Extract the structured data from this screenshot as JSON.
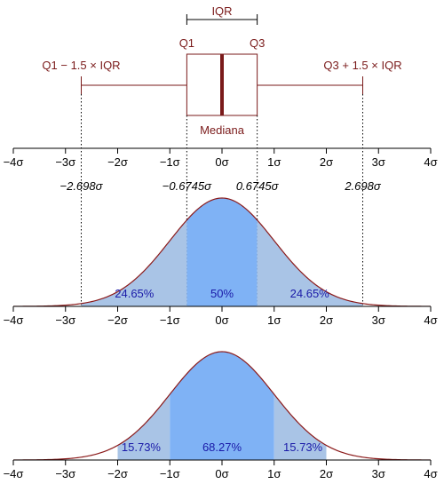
{
  "colors": {
    "box": "#7a1a1a",
    "median": "#7a1a1a",
    "curve": "#8b1a1a",
    "outer_fill": "#a9c4e6",
    "inner_fill": "#7fb2f5",
    "pct_text": "#1a1aa8",
    "sigma_text": "#000000",
    "dotted": "#000000"
  },
  "boxplot": {
    "iqr_label": "IQR",
    "q1_label": "Q1",
    "q3_label": "Q3",
    "median_label": "Mediana",
    "lower_whisker_label": "Q1 − 1.5 × IQR",
    "upper_whisker_label": "Q3 + 1.5 × IQR"
  },
  "quantiles": {
    "lower_whisker": {
      "value": -2.698,
      "label": "−2.698σ"
    },
    "q1": {
      "value": -0.6745,
      "label": "−0.6745σ"
    },
    "q3": {
      "value": 0.6745,
      "label": "0.6745σ"
    },
    "upper_whisker": {
      "value": 2.698,
      "label": "2.698σ"
    }
  },
  "axis": {
    "min": -4,
    "max": 4,
    "ticks": [
      {
        "value": -4,
        "label": "−4σ"
      },
      {
        "value": -3,
        "label": "−3σ"
      },
      {
        "value": -2,
        "label": "−2σ"
      },
      {
        "value": -1,
        "label": "−1σ"
      },
      {
        "value": 0,
        "label": "0σ"
      },
      {
        "value": 1,
        "label": "1σ"
      },
      {
        "value": 2,
        "label": "2σ"
      },
      {
        "value": 3,
        "label": "3σ"
      },
      {
        "value": 4,
        "label": "4σ"
      }
    ]
  },
  "panel_iqr": {
    "bounds": [
      -2.698,
      -0.6745,
      0.6745,
      2.698
    ],
    "shaded": [
      {
        "from": -2.698,
        "to": -0.6745,
        "label": "24.65%",
        "at": -1.68,
        "kind": "outer"
      },
      {
        "from": -0.6745,
        "to": 0.6745,
        "label": "50%",
        "at": 0,
        "kind": "inner"
      },
      {
        "from": 0.6745,
        "to": 2.698,
        "label": "24.65%",
        "at": 1.68,
        "kind": "outer"
      }
    ]
  },
  "panel_sigma": {
    "bounds": [
      -2,
      -1,
      1,
      2
    ],
    "shaded": [
      {
        "from": -2,
        "to": -1,
        "label": "15.73%",
        "at": -1.55,
        "kind": "outer"
      },
      {
        "from": -1,
        "to": 1,
        "label": "68.27%",
        "at": 0,
        "kind": "inner"
      },
      {
        "from": 1,
        "to": 2,
        "label": "15.73%",
        "at": 1.55,
        "kind": "outer"
      }
    ]
  }
}
